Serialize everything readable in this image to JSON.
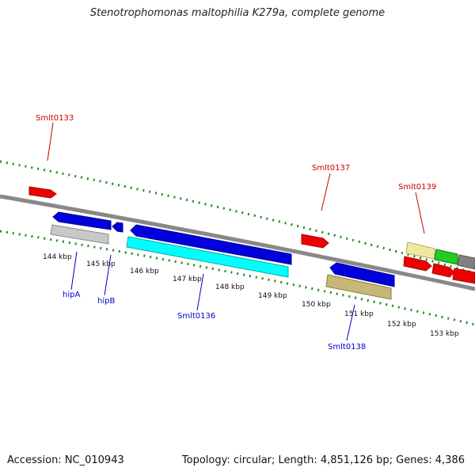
{
  "title": "Stenotrophomonas maltophilia K279a, complete genome",
  "footer": {
    "accession": "Accession: NC_010943",
    "stats": "Topology: circular; Length: 4,851,126 bp; Genes: 4,386"
  },
  "ticks": [
    "144 kbp",
    "145 kbp",
    "146 kbp",
    "147 kbp",
    "148 kbp",
    "149 kbp",
    "150 kbp",
    "151 kbp",
    "152 kbp",
    "153 kbp"
  ],
  "labels": {
    "Smlt0133": "Smlt0133",
    "Smlt0137": "Smlt0137",
    "Smlt0139": "Smlt0139",
    "hipA": "hipA",
    "hipB": "hipB",
    "Smlt0136": "Smlt0136",
    "Smlt0138": "Smlt0138"
  },
  "colors": {
    "top_label": "#cc0000",
    "bottom_label": "#0000cc",
    "tick_green": "#228b22",
    "backbone": "#808080",
    "red_feature": "#ee0000",
    "blue_feature": "#0000dd",
    "gray_feature": "#c8c8c8",
    "cyan_feature": "#00ffff",
    "olive_feature": "#c8b878",
    "yellow_feature": "#f0e8a0",
    "green_feature": "#22cc22"
  }
}
